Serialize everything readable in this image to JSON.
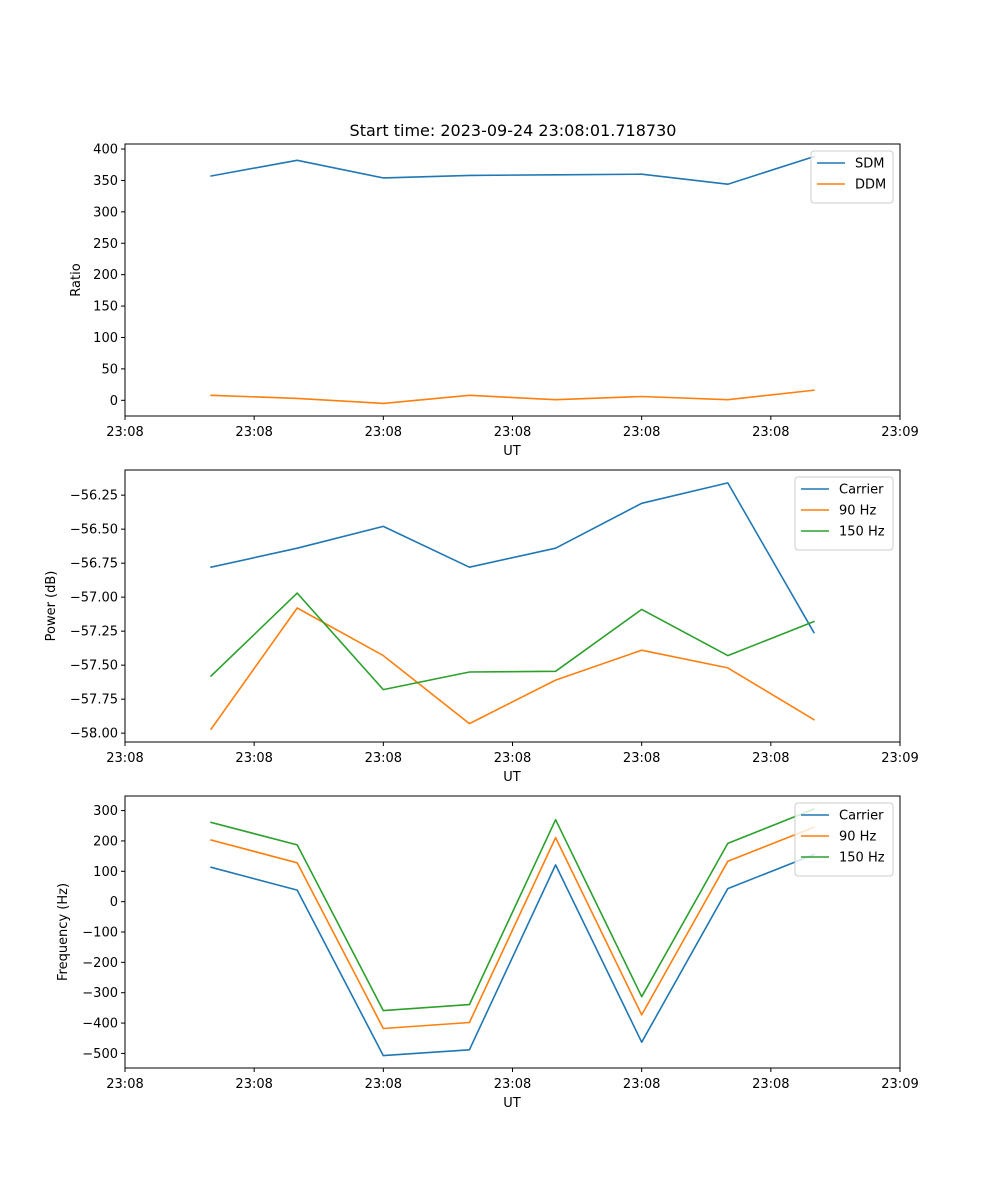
{
  "chart_data": [
    {
      "type": "line",
      "title": "Start time: 2023-09-24 23:08:01.718730",
      "xlabel": "UT",
      "ylabel": "Ratio",
      "x": [
        1,
        2,
        3,
        4,
        5,
        6,
        7,
        8
      ],
      "xlim": [
        0,
        9
      ],
      "x_ticks": [
        0,
        1.5,
        3,
        4.5,
        6,
        7.5,
        9
      ],
      "x_tick_labels": [
        "23:08",
        "23:08",
        "23:08",
        "23:08",
        "23:08",
        "23:08",
        "23:09"
      ],
      "ylim": [
        -25,
        408
      ],
      "y_ticks": [
        0,
        50,
        100,
        150,
        200,
        250,
        300,
        350,
        400
      ],
      "y_tick_labels": [
        "0",
        "50",
        "100",
        "150",
        "200",
        "250",
        "300",
        "350",
        "400"
      ],
      "legend": "top-right",
      "series": [
        {
          "name": "SDM",
          "color": "#1f77b4",
          "values": [
            357,
            382,
            354,
            358,
            359,
            360,
            344,
            388
          ]
        },
        {
          "name": "DDM",
          "color": "#ff7f0e",
          "values": [
            8,
            3,
            -5,
            8,
            1,
            6,
            1,
            16
          ]
        }
      ]
    },
    {
      "type": "line",
      "title": "",
      "xlabel": "UT",
      "ylabel": "Power (dB)",
      "x": [
        1,
        2,
        3,
        4,
        5,
        6,
        7,
        8
      ],
      "xlim": [
        0,
        9
      ],
      "x_ticks": [
        0,
        1.5,
        3,
        4.5,
        6,
        7.5,
        9
      ],
      "x_tick_labels": [
        "23:08",
        "23:08",
        "23:08",
        "23:08",
        "23:08",
        "23:08",
        "23:09"
      ],
      "ylim": [
        -58.065,
        -56.065
      ],
      "y_ticks": [
        -58.0,
        -57.75,
        -57.5,
        -57.25,
        -57.0,
        -56.75,
        -56.5,
        -56.25
      ],
      "y_tick_labels": [
        "−58.00",
        "−57.75",
        "−57.50",
        "−57.25",
        "−57.00",
        "−56.75",
        "−56.50",
        "−56.25"
      ],
      "legend": "top-right",
      "series": [
        {
          "name": "Carrier",
          "color": "#1f77b4",
          "values": [
            -56.78,
            -56.64,
            -56.48,
            -56.78,
            -56.64,
            -56.31,
            -56.16,
            -57.26
          ]
        },
        {
          "name": "90 Hz",
          "color": "#ff7f0e",
          "values": [
            -57.97,
            -57.08,
            -57.43,
            -57.93,
            -57.61,
            -57.39,
            -57.52,
            -57.9
          ]
        },
        {
          "name": "150 Hz",
          "color": "#2ca02c",
          "values": [
            -57.58,
            -56.97,
            -57.68,
            -57.55,
            -57.545,
            -57.09,
            -57.43,
            -57.18
          ]
        }
      ]
    },
    {
      "type": "line",
      "title": "",
      "xlabel": "UT",
      "ylabel": "Frequency (Hz)",
      "x": [
        1,
        2,
        3,
        4,
        5,
        6,
        7,
        8
      ],
      "xlim": [
        0,
        9
      ],
      "x_ticks": [
        0,
        1.5,
        3,
        4.5,
        6,
        7.5,
        9
      ],
      "x_tick_labels": [
        "23:08",
        "23:08",
        "23:08",
        "23:08",
        "23:08",
        "23:08",
        "23:09"
      ],
      "ylim": [
        -548,
        348
      ],
      "y_ticks": [
        -500,
        -400,
        -300,
        -200,
        -100,
        0,
        100,
        200,
        300
      ],
      "y_tick_labels": [
        "−500",
        "−400",
        "−300",
        "−200",
        "−100",
        "0",
        "100",
        "200",
        "300"
      ],
      "legend": "top-right",
      "series": [
        {
          "name": "Carrier",
          "color": "#1f77b4",
          "values": [
            113,
            38,
            -507,
            -488,
            121,
            -463,
            43,
            155
          ]
        },
        {
          "name": "90 Hz",
          "color": "#ff7f0e",
          "values": [
            203,
            128,
            -418,
            -398,
            211,
            -373,
            133,
            245
          ]
        },
        {
          "name": "150 Hz",
          "color": "#2ca02c",
          "values": [
            261,
            187,
            -359,
            -339,
            270,
            -313,
            192,
            305
          ]
        }
      ]
    }
  ]
}
